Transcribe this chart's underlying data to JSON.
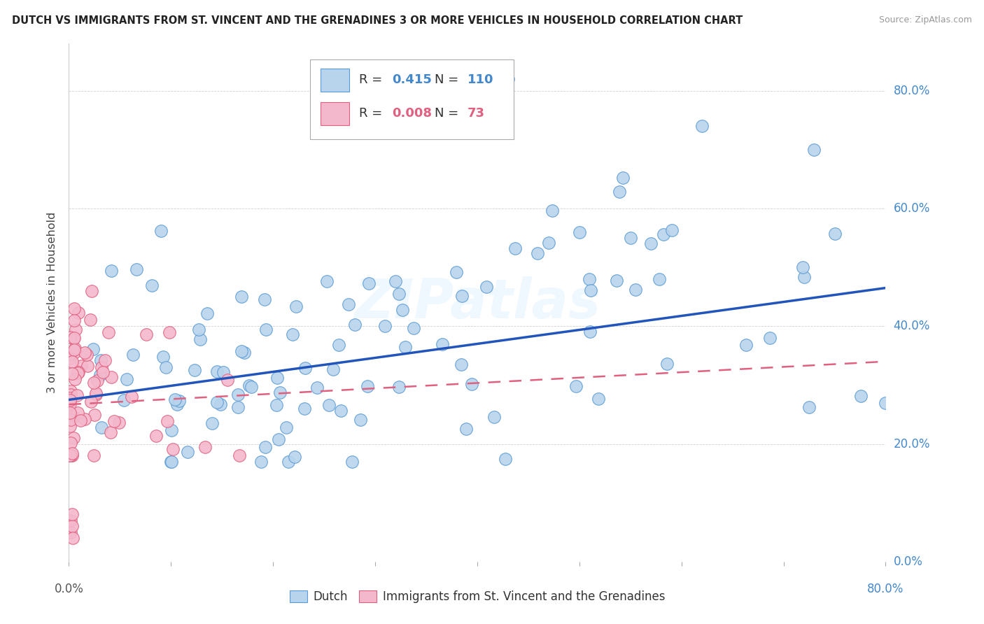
{
  "title": "DUTCH VS IMMIGRANTS FROM ST. VINCENT AND THE GRENADINES 3 OR MORE VEHICLES IN HOUSEHOLD CORRELATION CHART",
  "source": "Source: ZipAtlas.com",
  "ylabel": "3 or more Vehicles in Household",
  "ytick_labels": [
    "0.0%",
    "20.0%",
    "40.0%",
    "60.0%",
    "80.0%"
  ],
  "ytick_vals": [
    0.0,
    0.2,
    0.4,
    0.6,
    0.8
  ],
  "xlim": [
    0.0,
    0.8
  ],
  "ylim": [
    0.0,
    0.88
  ],
  "dutch_R": 0.415,
  "dutch_N": 110,
  "svg_R": 0.008,
  "svg_N": 73,
  "dutch_color": "#b8d4ed",
  "dutch_edge": "#5b9bd5",
  "svg_color": "#f4b8cc",
  "svg_edge": "#e06080",
  "trend_dutch_color": "#2255bb",
  "trend_svg_color": "#e06080",
  "legend_label_dutch": "Dutch",
  "legend_label_svg": "Immigrants from St. Vincent and the Grenadines",
  "dutch_trend_x0": 0.0,
  "dutch_trend_y0": 0.275,
  "dutch_trend_x1": 0.8,
  "dutch_trend_y1": 0.465,
  "svg_trend_x0": 0.0,
  "svg_trend_y0": 0.267,
  "svg_trend_x1": 0.8,
  "svg_trend_y1": 0.34
}
